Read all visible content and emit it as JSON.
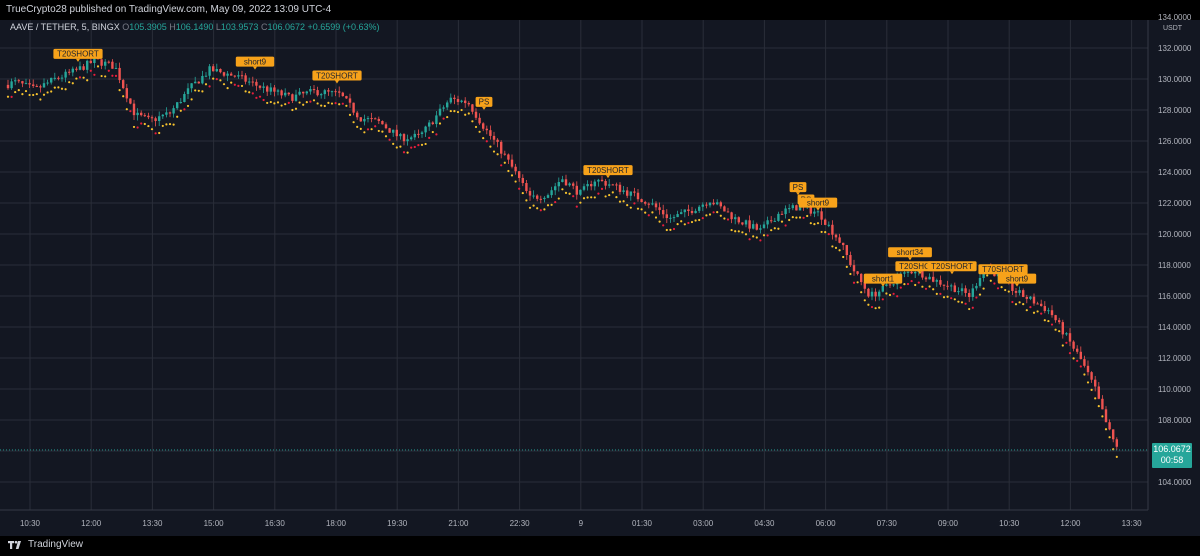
{
  "header": {
    "published": "TrueCrypto28 published on TradingView.com, May 09, 2022 13:09 UTC-4"
  },
  "legend": {
    "symbol": "AAVE / TETHER, 5, BINGX",
    "open_label": "O",
    "open": "105.3905",
    "high_label": "H",
    "high": "106.1490",
    "low_label": "L",
    "low": "103.9573",
    "close_label": "C",
    "close": "106.0672",
    "change": "+0.6599 (+0.63%)"
  },
  "footer": {
    "brand": "TradingView"
  },
  "price_tag": {
    "price": "106.0672",
    "countdown": "00:58"
  },
  "chart_data": {
    "type": "candlestick",
    "currency_label": "USDT",
    "y_ticks": [
      "134.0000",
      "132.0000",
      "130.0000",
      "128.0000",
      "126.0000",
      "124.0000",
      "122.0000",
      "120.0000",
      "118.0000",
      "116.0000",
      "114.0000",
      "112.0000",
      "110.0000",
      "108.0000",
      "106.0000",
      "104.0000"
    ],
    "ylim": [
      104,
      134
    ],
    "x_ticks": [
      "10:30",
      "12:00",
      "13:30",
      "15:00",
      "16:30",
      "18:00",
      "19:30",
      "21:00",
      "22:30",
      "9",
      "01:30",
      "03:00",
      "04:30",
      "06:00",
      "07:30",
      "09:00",
      "10:30",
      "12:00",
      "13:30"
    ],
    "grid": true,
    "colors": {
      "background": "#131722",
      "grid": "#2a2e39",
      "candle_up": "#26a69a",
      "candle_down": "#ef5350",
      "signal_label": "#f7a21a",
      "dot_yellow": "#f7c32e",
      "dot_red": "#e91e3c"
    },
    "price_path": [
      [
        0,
        129.5
      ],
      [
        15,
        129.8
      ],
      [
        35,
        129.3
      ],
      [
        55,
        130.0
      ],
      [
        75,
        130.5
      ],
      [
        95,
        131.2
      ],
      [
        115,
        130.8
      ],
      [
        135,
        127.7
      ],
      [
        150,
        127.3
      ],
      [
        170,
        127.8
      ],
      [
        190,
        129.4
      ],
      [
        210,
        130.6
      ],
      [
        235,
        130.2
      ],
      [
        260,
        129.5
      ],
      [
        290,
        128.8
      ],
      [
        315,
        129.2
      ],
      [
        340,
        129.0
      ],
      [
        360,
        127.5
      ],
      [
        380,
        127.2
      ],
      [
        400,
        126.2
      ],
      [
        420,
        126.3
      ],
      [
        435,
        127.5
      ],
      [
        450,
        128.7
      ],
      [
        468,
        128.5
      ],
      [
        485,
        126.8
      ],
      [
        500,
        125.5
      ],
      [
        515,
        124.0
      ],
      [
        530,
        122.3
      ],
      [
        548,
        122.6
      ],
      [
        562,
        123.6
      ],
      [
        580,
        122.6
      ],
      [
        595,
        123.5
      ],
      [
        610,
        123.2
      ],
      [
        630,
        122.6
      ],
      [
        650,
        122.0
      ],
      [
        670,
        121.0
      ],
      [
        690,
        121.5
      ],
      [
        710,
        122.2
      ],
      [
        735,
        121.0
      ],
      [
        760,
        120.2
      ],
      [
        780,
        121.4
      ],
      [
        800,
        121.8
      ],
      [
        820,
        121.3
      ],
      [
        840,
        119.5
      ],
      [
        855,
        117.5
      ],
      [
        870,
        116.0
      ],
      [
        885,
        116.5
      ],
      [
        900,
        117.3
      ],
      [
        915,
        117.7
      ],
      [
        935,
        117.0
      ],
      [
        955,
        116.5
      ],
      [
        970,
        116.0
      ],
      [
        985,
        118.0
      ],
      [
        1000,
        117.2
      ],
      [
        1015,
        116.3
      ],
      [
        1035,
        115.6
      ],
      [
        1050,
        115.0
      ],
      [
        1065,
        113.5
      ],
      [
        1080,
        112.0
      ],
      [
        1095,
        110.0
      ],
      [
        1105,
        108.0
      ],
      [
        1112,
        106.8
      ],
      [
        1120,
        106.07
      ]
    ],
    "signals": [
      {
        "label": "T20SHORT",
        "x": 78,
        "y": 131.3
      },
      {
        "label": "short9",
        "x": 255,
        "y": 130.8
      },
      {
        "label": "T20SHORT",
        "x": 337,
        "y": 129.9
      },
      {
        "label": "PS",
        "x": 484,
        "y": 128.2
      },
      {
        "label": "T20SHORT",
        "x": 608,
        "y": 123.8
      },
      {
        "label": "PS",
        "x": 798,
        "y": 122.7
      },
      {
        "label": "PS",
        "x": 806,
        "y": 121.9
      },
      {
        "label": "short9",
        "x": 818,
        "y": 121.7
      },
      {
        "label": "short34",
        "x": 910,
        "y": 118.5
      },
      {
        "label": "T20SHORT",
        "x": 920,
        "y": 117.6
      },
      {
        "label": "T20SHORT",
        "x": 952,
        "y": 117.6
      },
      {
        "label": "short1",
        "x": 883,
        "y": 116.8
      },
      {
        "label": "T70SHORT",
        "x": 1003,
        "y": 117.4
      },
      {
        "label": "short9",
        "x": 1017,
        "y": 116.8
      }
    ]
  }
}
